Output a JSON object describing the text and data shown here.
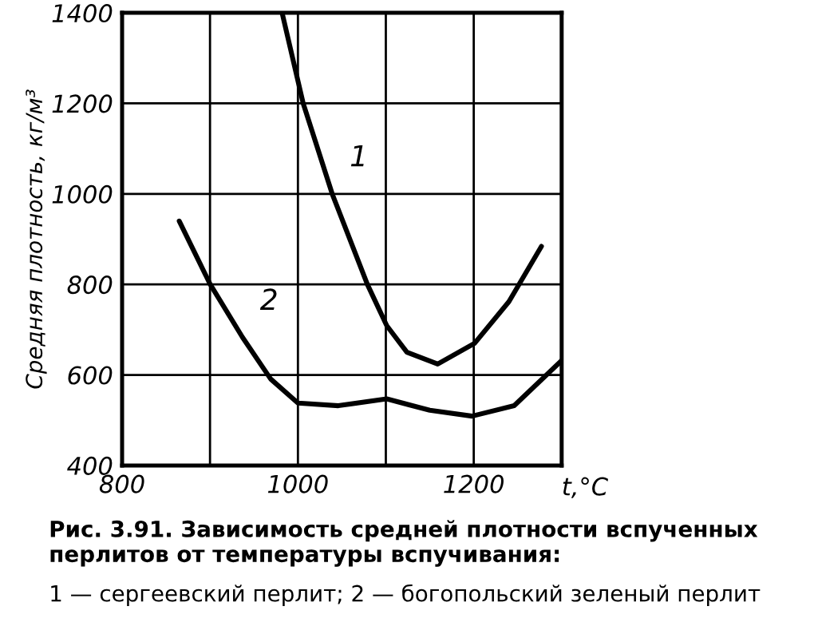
{
  "chart_data": {
    "type": "line",
    "xlabel": "t,°C",
    "ylabel": "Средняя плотность, кг/м³",
    "xlim": [
      800,
      1300
    ],
    "ylim": [
      400,
      1400
    ],
    "xticks": [
      800,
      {
        "value": 900,
        "label": null
      },
      1000,
      {
        "value": 1100,
        "label": null
      },
      1200,
      {
        "value": 1300,
        "label": null
      }
    ],
    "yticks": [
      400,
      600,
      800,
      1000,
      1200,
      1400
    ],
    "grid": true,
    "legend": false,
    "marker": "none",
    "line_style": "solid",
    "series": [
      {
        "name": "1",
        "color": "#000000",
        "x": [
          982,
          1006,
          1039,
          1079,
          1101,
          1124,
          1159,
          1201,
          1240,
          1277
        ],
        "values": [
          1400,
          1200,
          1000,
          800,
          709,
          650,
          624,
          670,
          762,
          884
        ]
      },
      {
        "name": "2",
        "color": "#000000",
        "x": [
          865,
          900,
          937,
          969,
          1000,
          1046,
          1101,
          1150,
          1198,
          1246,
          1300
        ],
        "values": [
          940,
          801,
          683,
          591,
          538,
          532,
          547,
          522,
          509,
          532,
          632
        ]
      }
    ],
    "annotations": [
      "Рис. 3.91. Зависимость средней плотности вспученных перлитов от температуры вспучивания:",
      "1 — сергеевский перлит; 2 — богопольский зеленый перлит"
    ]
  }
}
